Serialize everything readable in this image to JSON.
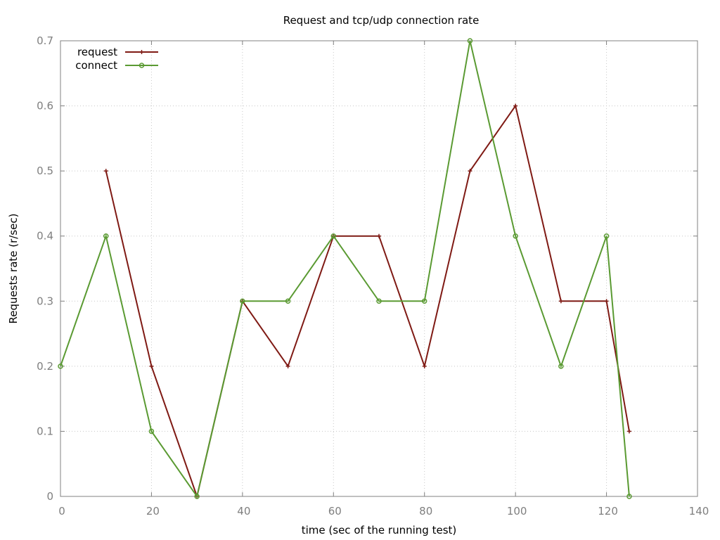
{
  "chart_data": {
    "type": "line",
    "title": "Request and tcp/udp connection rate",
    "xlabel": "time (sec of the running test)",
    "ylabel": "Requests rate (r/sec)",
    "xlim": [
      0,
      140
    ],
    "ylim": [
      0,
      0.7
    ],
    "xticks": [
      0,
      20,
      40,
      60,
      80,
      100,
      120,
      140
    ],
    "yticks": [
      0,
      0.1,
      0.2,
      0.3,
      0.4,
      0.5,
      0.6,
      0.7
    ],
    "xtick_labels": [
      "0",
      "20",
      "40",
      "60",
      "80",
      "100",
      "120",
      "140"
    ],
    "ytick_labels": [
      "0",
      "0.1",
      "0.2",
      "0.3",
      "0.4",
      "0.5",
      "0.6",
      "0.7"
    ],
    "grid": true,
    "legend_position": "top-left",
    "series": [
      {
        "name": "request",
        "color": "#7f1a14",
        "marker": "plus",
        "x": [
          10,
          20,
          30,
          40,
          50,
          60,
          70,
          80,
          90,
          100,
          110,
          120,
          125
        ],
        "y": [
          0.5,
          0.2,
          0.0,
          0.3,
          0.2,
          0.4,
          0.4,
          0.2,
          0.5,
          0.6,
          0.3,
          0.3,
          0.1
        ]
      },
      {
        "name": "connect",
        "color": "#5a9a32",
        "marker": "circle",
        "x": [
          0,
          10,
          20,
          30,
          40,
          50,
          60,
          70,
          80,
          90,
          100,
          110,
          120,
          125
        ],
        "y": [
          0.2,
          0.4,
          0.1,
          0.0,
          0.3,
          0.3,
          0.4,
          0.3,
          0.3,
          0.7,
          0.4,
          0.2,
          0.4,
          0.0
        ]
      }
    ]
  }
}
